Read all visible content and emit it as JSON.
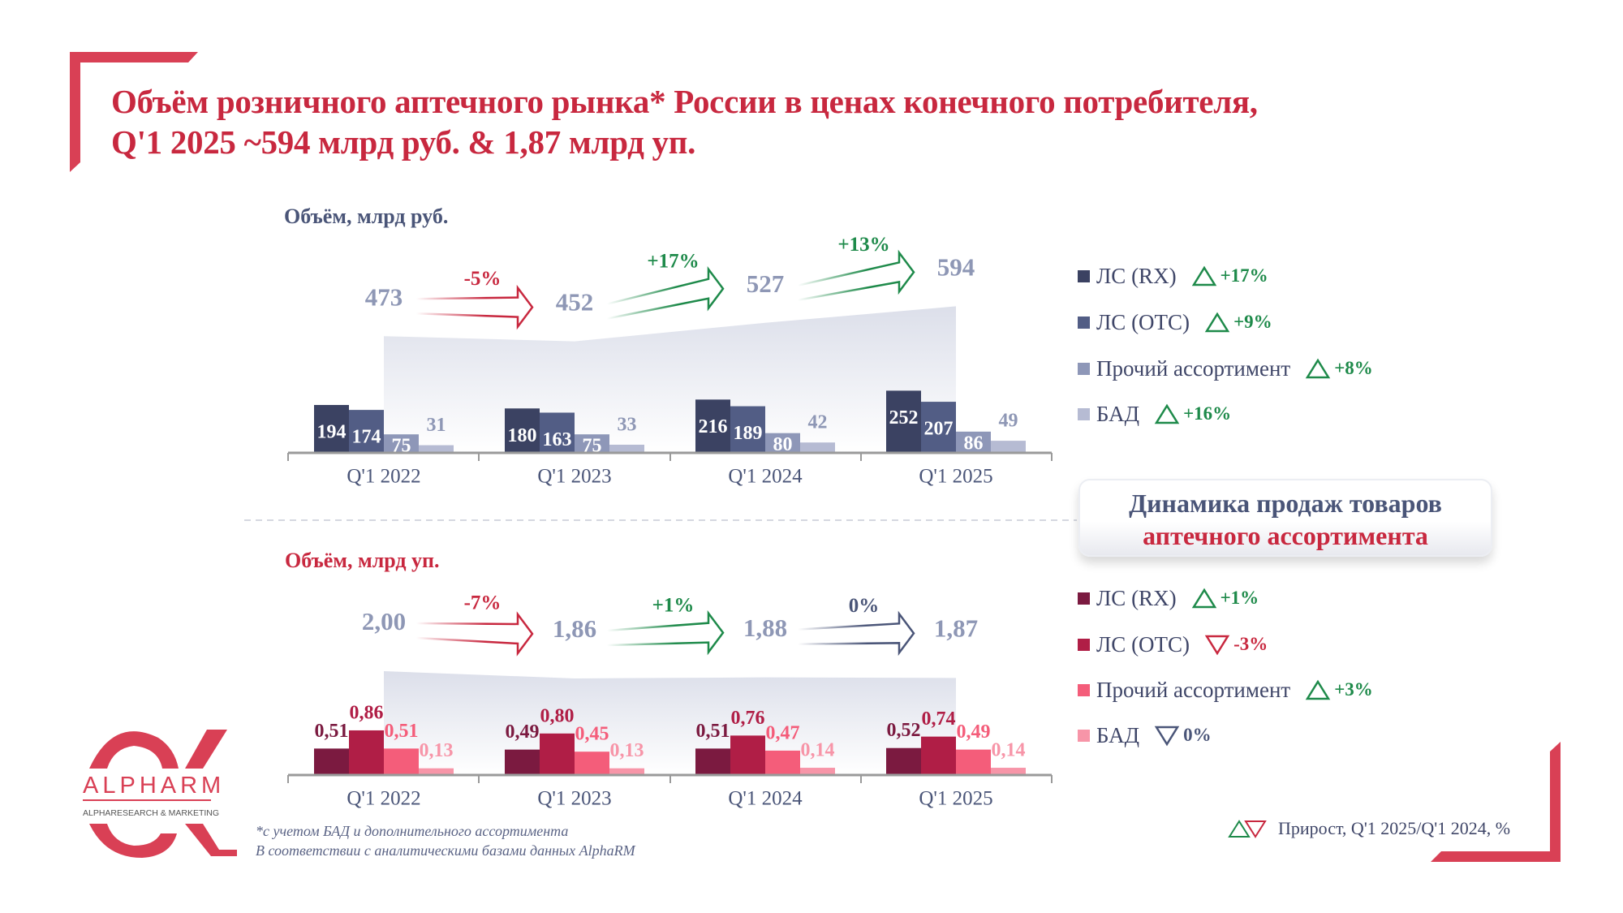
{
  "title": {
    "line1": "Объём розничного аптечного рынка* России в ценах конечного потребителя,",
    "line2": "Q'1 2025 ~594 млрд руб. & 1,87 млрд уп."
  },
  "colors": {
    "accent": "#c8283f",
    "green": "#1e8a4a",
    "navy": "#4a5578",
    "total": "#8e97b5"
  },
  "chart_data": [
    {
      "type": "bar",
      "title": "Объём, млрд руб.",
      "categories": [
        "Q'1 2022",
        "Q'1 2023",
        "Q'1 2024",
        "Q'1 2025"
      ],
      "series": [
        {
          "name": "ЛС (RX)",
          "values": [
            194,
            180,
            216,
            252
          ],
          "labels": [
            "194",
            "180",
            "216",
            "252"
          ],
          "color": "#3b4262"
        },
        {
          "name": "ЛС (ОТС)",
          "values": [
            174,
            163,
            189,
            207
          ],
          "labels": [
            "174",
            "163",
            "189",
            "207"
          ],
          "color": "#525d85"
        },
        {
          "name": "Прочий ассортимент",
          "values": [
            75,
            75,
            80,
            86
          ],
          "labels": [
            "75",
            "75",
            "80",
            "86"
          ],
          "color": "#8e97b8"
        },
        {
          "name": "БАД",
          "values": [
            31,
            33,
            42,
            49
          ],
          "labels": [
            "31",
            "33",
            "42",
            "49"
          ],
          "color": "#b6bbd3"
        }
      ],
      "totals": [
        473,
        452,
        527,
        594
      ],
      "total_labels": [
        "473",
        "452",
        "527",
        "594"
      ],
      "changes": [
        {
          "label": "-5%",
          "dir": "down"
        },
        {
          "label": "+17%",
          "dir": "up"
        },
        {
          "label": "+13%",
          "dir": "up"
        }
      ],
      "legend": [
        {
          "label": "ЛС (RX)",
          "growth": "+17%",
          "dir": "up"
        },
        {
          "label": "ЛС (ОТС)",
          "growth": "+9%",
          "dir": "up"
        },
        {
          "label": "Прочий ассортимент",
          "growth": "+8%",
          "dir": "up"
        },
        {
          "label": "БАД",
          "growth": "+16%",
          "dir": "up"
        }
      ]
    },
    {
      "type": "bar",
      "title": "Объём, млрд уп.",
      "categories": [
        "Q'1 2022",
        "Q'1 2023",
        "Q'1 2024",
        "Q'1 2025"
      ],
      "series": [
        {
          "name": "ЛС (RX)",
          "values": [
            0.51,
            0.49,
            0.51,
            0.52
          ],
          "labels": [
            "0,51",
            "0,49",
            "0,51",
            "0,52"
          ],
          "color": "#7b1a40"
        },
        {
          "name": "ЛС (ОТС)",
          "values": [
            0.86,
            0.8,
            0.76,
            0.74
          ],
          "labels": [
            "0,86",
            "0,80",
            "0,76",
            "0,74"
          ],
          "color": "#b01e46"
        },
        {
          "name": "Прочий ассортимент",
          "values": [
            0.51,
            0.45,
            0.47,
            0.49
          ],
          "labels": [
            "0,51",
            "0,45",
            "0,47",
            "0,49"
          ],
          "color": "#f45d7a"
        },
        {
          "name": "БАД",
          "values": [
            0.13,
            0.13,
            0.14,
            0.14
          ],
          "labels": [
            "0,13",
            "0,13",
            "0,14",
            "0,14"
          ],
          "color": "#f795a8"
        }
      ],
      "totals": [
        2.0,
        1.86,
        1.88,
        1.87
      ],
      "total_labels": [
        "2,00",
        "1,86",
        "1,88",
        "1,87"
      ],
      "changes": [
        {
          "label": "-7%",
          "dir": "down"
        },
        {
          "label": "+1%",
          "dir": "up"
        },
        {
          "label": "0%",
          "dir": "flat"
        }
      ],
      "legend": [
        {
          "label": "ЛС (RX)",
          "growth": "+1%",
          "dir": "up"
        },
        {
          "label": "ЛС (ОТС)",
          "growth": "-3%",
          "dir": "down"
        },
        {
          "label": "Прочий ассортимент",
          "growth": "+3%",
          "dir": "up"
        },
        {
          "label": "БАД",
          "growth": "0%",
          "dir": "flat-down"
        }
      ]
    }
  ],
  "box": {
    "line1": "Динамика продаж товаров",
    "line2": "аптечного ассортимента"
  },
  "footnote": {
    "line1": "*с учетом БАД и дополнительного ассортимента",
    "line2": "В соответствии с аналитическими базами данных AlphaRM"
  },
  "growth_note": "Прирост, Q'1 2025/Q'1 2024, %",
  "logo": {
    "name": "ALPHARM",
    "tagline": "ALPHARESEARCH & MARKETING"
  }
}
